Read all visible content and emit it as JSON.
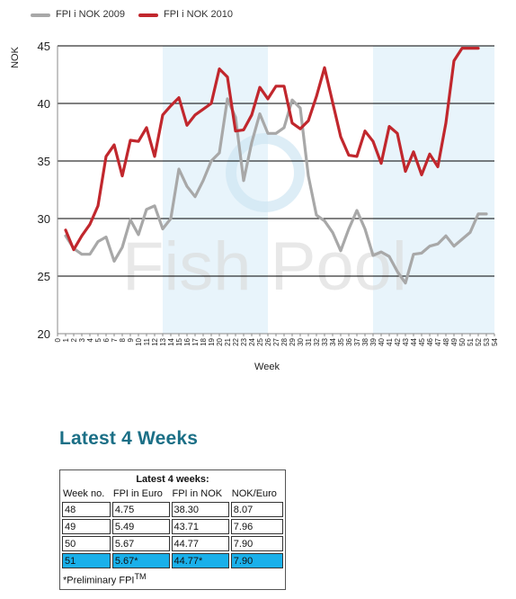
{
  "legend": {
    "series1": "FPI i NOK 2009",
    "series2": "FPI i NOK 2010"
  },
  "colors": {
    "series2009": "#a8a8a8",
    "series2010": "#c1272d",
    "band": "#e8f4fb",
    "grid": "#000000",
    "heading": "#1b6f86",
    "prelim_row": "#1ab0ea"
  },
  "watermark": "Fish Pool",
  "chart_data": {
    "type": "line",
    "xlabel": "Week",
    "ylabel": "NOK",
    "xlim": [
      0,
      54
    ],
    "ylim": [
      20,
      45
    ],
    "yticks": [
      20,
      25,
      30,
      35,
      40,
      45
    ],
    "xticks": [
      0,
      1,
      2,
      3,
      4,
      5,
      6,
      7,
      8,
      9,
      10,
      11,
      12,
      13,
      14,
      15,
      16,
      17,
      18,
      19,
      20,
      21,
      22,
      23,
      24,
      25,
      26,
      27,
      28,
      29,
      30,
      31,
      32,
      33,
      34,
      35,
      36,
      37,
      38,
      39,
      40,
      41,
      42,
      43,
      44,
      45,
      46,
      47,
      48,
      49,
      50,
      51,
      52,
      53,
      54
    ],
    "grid": "horizontal",
    "legend_position": "top-left",
    "highlight_bands": [
      [
        13,
        26
      ],
      [
        39,
        54
      ]
    ],
    "series": [
      {
        "name": "FPI i NOK 2009",
        "x": [
          1,
          2,
          3,
          4,
          5,
          6,
          7,
          8,
          9,
          10,
          11,
          12,
          13,
          14,
          15,
          16,
          17,
          18,
          19,
          20,
          21,
          22,
          23,
          24,
          25,
          26,
          27,
          28,
          29,
          30,
          31,
          32,
          33,
          34,
          35,
          36,
          37,
          38,
          39,
          40,
          41,
          42,
          43,
          44,
          45,
          46,
          47,
          48,
          49,
          50,
          51,
          52,
          53
        ],
        "values": [
          28.5,
          27.4,
          26.9,
          26.9,
          28.0,
          28.4,
          26.3,
          27.5,
          29.9,
          28.6,
          30.8,
          31.1,
          29.1,
          30.0,
          34.3,
          32.8,
          31.9,
          33.3,
          35.0,
          35.7,
          40.4,
          38.8,
          33.3,
          36.6,
          39.1,
          37.4,
          37.4,
          37.9,
          40.3,
          39.6,
          33.7,
          30.3,
          29.8,
          28.8,
          27.2,
          29.1,
          30.7,
          29.1,
          26.8,
          27.1,
          26.7,
          25.4,
          24.4,
          26.9,
          27.0,
          27.6,
          27.8,
          28.5,
          27.6,
          28.2,
          28.8,
          30.4,
          30.4
        ]
      },
      {
        "name": "FPI i NOK 2010",
        "x": [
          1,
          2,
          3,
          4,
          5,
          6,
          7,
          8,
          9,
          10,
          11,
          12,
          13,
          14,
          15,
          16,
          17,
          18,
          19,
          20,
          21,
          22,
          23,
          24,
          25,
          26,
          27,
          28,
          29,
          30,
          31,
          32,
          33,
          34,
          35,
          36,
          37,
          38,
          39,
          40,
          41,
          42,
          43,
          44,
          45,
          46,
          47,
          48,
          49,
          50,
          51,
          52
        ],
        "values": [
          29.0,
          27.3,
          28.5,
          29.5,
          31.1,
          35.4,
          36.4,
          33.7,
          36.8,
          36.7,
          37.9,
          35.4,
          39.0,
          39.8,
          40.5,
          38.1,
          39.0,
          39.5,
          40.0,
          43.0,
          42.3,
          37.6,
          37.7,
          39.0,
          41.4,
          40.4,
          41.5,
          41.5,
          38.3,
          37.8,
          38.5,
          40.6,
          43.1,
          40.1,
          37.1,
          35.5,
          35.4,
          37.6,
          36.7,
          34.8,
          38.0,
          37.4,
          34.1,
          35.8,
          33.8,
          35.6,
          34.5,
          38.3,
          43.7,
          44.8,
          44.8,
          44.8
        ]
      }
    ]
  },
  "latest": {
    "heading": "Latest 4 Weeks",
    "table_title": "Latest 4 weeks:",
    "headers": [
      "Week no.",
      "FPI in Euro",
      "FPI in NOK",
      "NOK/Euro"
    ],
    "rows": [
      [
        "48",
        "4.75",
        "38.30",
        "8.07"
      ],
      [
        "49",
        "5.49",
        "43.71",
        "7.96"
      ],
      [
        "50",
        "5.67",
        "44.77",
        "7.90"
      ],
      [
        "51",
        "5.67*",
        "44.77*",
        "7.90"
      ]
    ],
    "preliminary_row_index": 3,
    "footnote": "*Preliminary FPI",
    "footnote_sup": "TM"
  }
}
